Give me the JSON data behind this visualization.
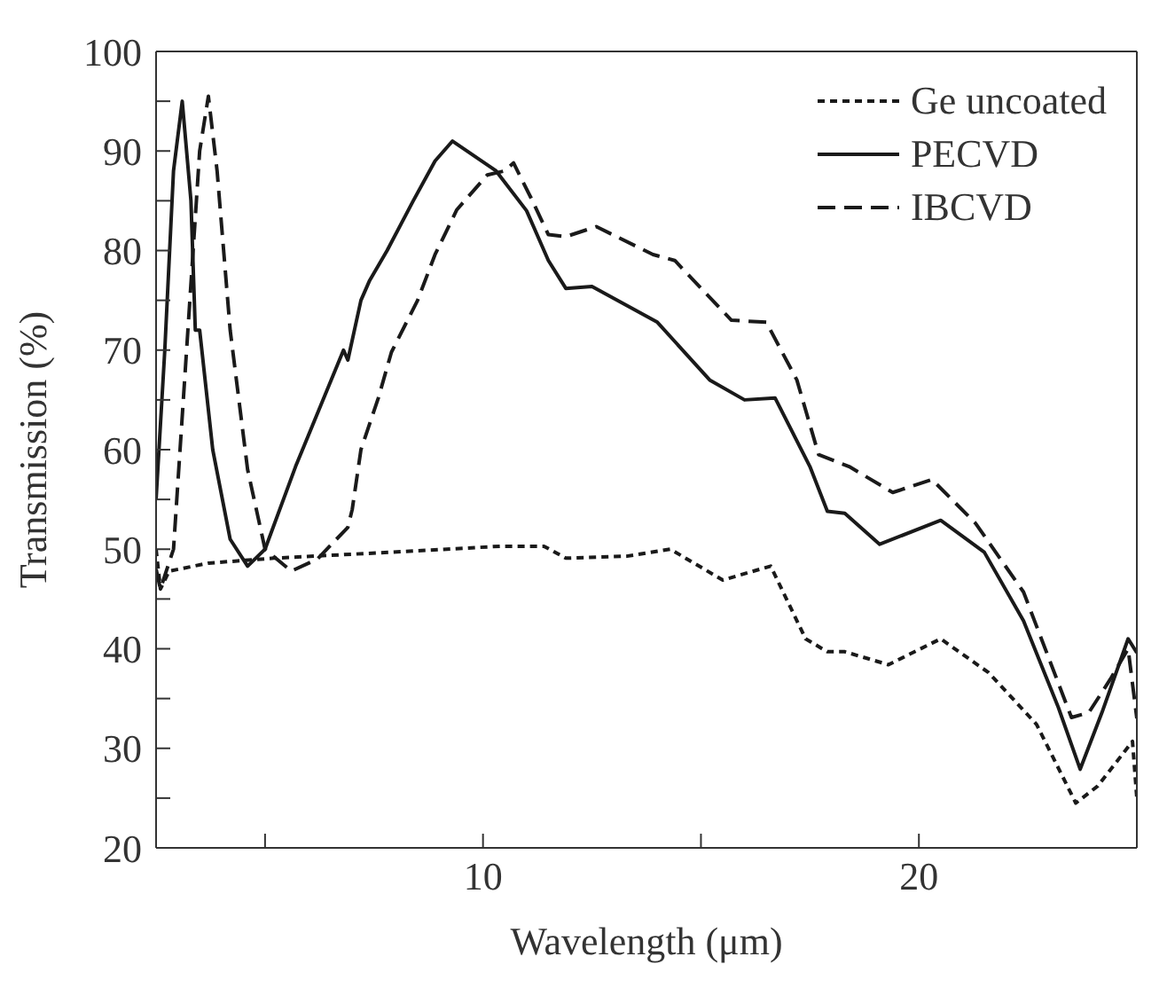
{
  "chart_data": {
    "type": "line",
    "xlabel": "Wavelength (μm)",
    "ylabel": "Transmission (%)",
    "xlim": [
      2.5,
      25
    ],
    "xticks": [
      {
        "value": 5,
        "label": null
      },
      10,
      {
        "value": 15,
        "label": null
      },
      20,
      {
        "value": 25,
        "label": null
      }
    ],
    "ylim": [
      20,
      100
    ],
    "yticks": [
      20,
      {
        "value": 25,
        "label": null
      },
      30,
      {
        "value": 35,
        "label": null
      },
      40,
      {
        "value": 45,
        "label": null
      },
      50,
      {
        "value": 55,
        "label": null
      },
      60,
      {
        "value": 65,
        "label": null
      },
      70,
      {
        "value": 75,
        "label": null
      },
      80,
      {
        "value": 85,
        "label": null
      },
      90,
      {
        "value": 95,
        "label": null
      },
      100
    ],
    "legend": "top right",
    "marker": "none",
    "series": [
      {
        "name": "Ge uncoated",
        "color": "#1a1a1a",
        "line_style": "dotted",
        "x": [
          2.5,
          2.6,
          2.8,
          3.7,
          5.2,
          7.9,
          10.4,
          11.4,
          11.9,
          13.3,
          14.3,
          15.5,
          16.6,
          17.4,
          17.9,
          18.3,
          19.3,
          20.5,
          21.6,
          22.7,
          23.6,
          24.1,
          24.9,
          25
        ],
        "values": [
          50,
          46,
          47.8,
          48.6,
          49.1,
          49.7,
          50.3,
          50.3,
          49.1,
          49.3,
          50,
          46.9,
          48.3,
          41,
          39.7,
          39.7,
          38.4,
          41,
          37.6,
          32.4,
          24.5,
          26.2,
          30.7,
          25
        ]
      },
      {
        "name": "PECVD",
        "color": "#1a1a1a",
        "line_style": "solid",
        "x": [
          2.5,
          2.7,
          2.9,
          3.1,
          3.3,
          3.4,
          3.5,
          3.8,
          4.2,
          4.6,
          5.0,
          5.7,
          6.8,
          6.9,
          7.2,
          7.4,
          7.8,
          8.4,
          8.9,
          9.3,
          10.3,
          11,
          11.5,
          11.9,
          12.5,
          14,
          15.2,
          16,
          16.7,
          17.5,
          17.9,
          18.3,
          19.1,
          20.5,
          21.5,
          22.4,
          23.2,
          23.7,
          24.2,
          24.8,
          25
        ],
        "values": [
          55,
          70,
          88,
          95,
          85,
          72,
          72,
          60,
          51,
          48.3,
          50,
          58.3,
          70,
          69,
          75,
          77,
          80,
          85,
          89,
          91,
          88,
          84,
          79,
          76.2,
          76.4,
          72.8,
          67,
          65,
          65.2,
          58.3,
          53.8,
          53.6,
          50.5,
          52.9,
          49.7,
          42.8,
          34.1,
          27.9,
          33.6,
          41,
          39.6
        ]
      },
      {
        "name": "IBCVD",
        "color": "#1a1a1a",
        "line_style": "dashed",
        "x": [
          2.5,
          2.6,
          2.9,
          3.2,
          3.5,
          3.7,
          3.9,
          4.2,
          4.6,
          5.0,
          5.6,
          6.2,
          6.9,
          7.0,
          7.2,
          7.6,
          7.9,
          8.5,
          8.9,
          9.4,
          10.1,
          10.5,
          10.7,
          11.1,
          11.5,
          11.9,
          12.6,
          13.9,
          14.4,
          15.7,
          16.5,
          17.2,
          17.7,
          18.4,
          19.4,
          20.3,
          21.3,
          22.4,
          23.5,
          23.9,
          24.4,
          24.8,
          25
        ],
        "values": [
          48,
          46,
          50,
          70,
          90,
          95.5,
          88,
          72,
          58,
          50,
          47.8,
          49,
          52.2,
          54,
          60,
          65.2,
          69.8,
          75,
          79.6,
          84.1,
          87.6,
          88,
          88.8,
          85.3,
          81.6,
          81.4,
          82.4,
          79.6,
          79,
          73,
          72.8,
          67,
          59.5,
          58.3,
          55.7,
          57,
          52.6,
          45.7,
          33.1,
          33.6,
          37,
          40,
          33
        ]
      }
    ]
  }
}
